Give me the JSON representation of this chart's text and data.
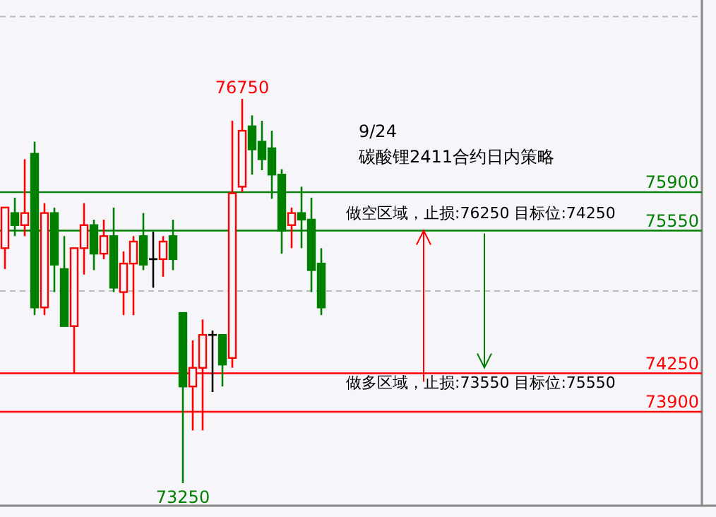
{
  "chart_data": {
    "type": "candlestick",
    "categories": [
      null,
      null,
      null,
      null,
      null,
      null,
      null,
      null,
      null,
      null,
      null,
      null,
      null,
      null,
      null,
      null,
      null,
      null,
      null,
      null,
      null,
      null,
      null,
      null,
      null,
      null,
      null,
      null,
      null,
      null,
      null,
      null,
      null
    ],
    "ohlc": [
      [
        75390,
        75760,
        75200,
        75760
      ],
      [
        75710,
        75850,
        75500,
        75600
      ],
      [
        75600,
        76200,
        75500,
        75710
      ],
      [
        76250,
        76360,
        74780,
        74850
      ],
      [
        74850,
        75800,
        74780,
        75710
      ],
      [
        75710,
        75760,
        74990,
        75240
      ],
      [
        75200,
        75500,
        74680,
        74680
      ],
      [
        74680,
        75390,
        74250,
        75390
      ],
      [
        75390,
        75800,
        75150,
        75600
      ],
      [
        75600,
        75650,
        75190,
        75340
      ],
      [
        75340,
        75650,
        75290,
        75500
      ],
      [
        75500,
        75760,
        74990,
        75030
      ],
      [
        74990,
        75360,
        74780,
        75250
      ],
      [
        75250,
        75500,
        74780,
        75450
      ],
      [
        75500,
        75710,
        75190,
        75240
      ],
      [
        75290,
        75540,
        75030,
        75290
      ],
      [
        75290,
        75500,
        75130,
        75450
      ],
      [
        75500,
        75650,
        75190,
        75290
      ],
      [
        74800,
        74800,
        73250,
        74130
      ],
      [
        74130,
        74550,
        73730,
        74300
      ],
      [
        74300,
        74740,
        73730,
        74600
      ],
      [
        74600,
        74640,
        74080,
        74600
      ],
      [
        74600,
        74600,
        74130,
        74330
      ],
      [
        74390,
        76550,
        74300,
        75890
      ],
      [
        75950,
        76750,
        75900,
        76460
      ],
      [
        76500,
        76600,
        76060,
        76290
      ],
      [
        76360,
        76550,
        76100,
        76200
      ],
      [
        76300,
        76460,
        75840,
        76060
      ],
      [
        76060,
        76110,
        75340,
        75550
      ],
      [
        75600,
        75760,
        75390,
        75710
      ],
      [
        75710,
        75950,
        75390,
        75650
      ],
      [
        75650,
        75850,
        74990,
        75190
      ],
      [
        75250,
        75390,
        74780,
        74850
      ]
    ],
    "yticks": [
      {
        "value": 75000,
        "label": null
      },
      {
        "value": 77500,
        "label": null
      }
    ],
    "grid": "y",
    "ref_lines": [
      {
        "axis": "y",
        "value": 75900,
        "label": "75900",
        "color": "#008000"
      },
      {
        "axis": "y",
        "value": 75550,
        "label": "75550",
        "color": "#008000"
      },
      {
        "axis": "y",
        "value": 74250,
        "label": "74250",
        "color": "#ff0000"
      },
      {
        "axis": "y",
        "value": 73900,
        "label": "73900",
        "color": "#ff0000"
      }
    ],
    "annotations": [
      "9/24",
      "碳酸锂2411合约日内策略",
      "做空区域，止损:76250 目标位:74250",
      "做多区域，止损:73550 目标位:75550",
      {
        "text": "76750",
        "y": 76750
      },
      {
        "text": "73250",
        "y": 73250
      }
    ]
  }
}
